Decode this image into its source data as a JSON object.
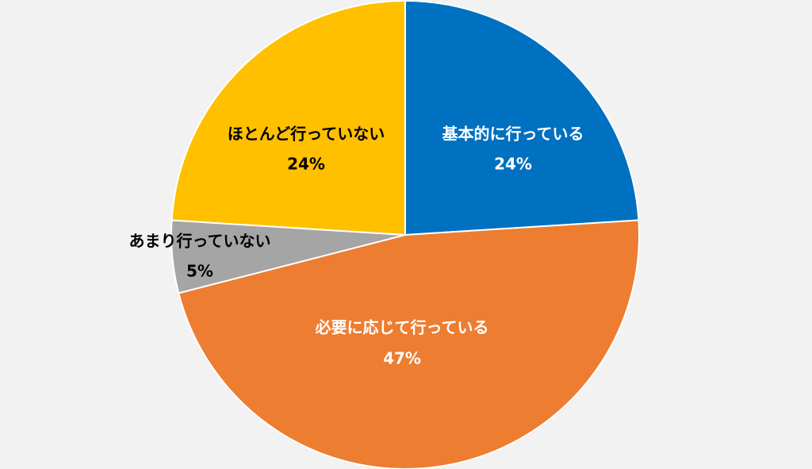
{
  "chart_data": {
    "type": "pie",
    "title": "",
    "start_angle_deg": 0,
    "direction": "clockwise",
    "legend": "none",
    "slices": [
      {
        "label": "基本的に行っている",
        "value": 24,
        "value_label": "24%",
        "color": "#0070c0",
        "label_color": "#ffffff"
      },
      {
        "label": "必要に応じて行っている",
        "value": 47,
        "value_label": "47%",
        "color": "#ed7d31",
        "label_color": "#ffffff"
      },
      {
        "label": "あまり行っていない",
        "value": 5,
        "value_label": "5%",
        "color": "#a5a5a5",
        "label_color": "#000000"
      },
      {
        "label": "ほとんど行っていない",
        "value": 24,
        "value_label": "24%",
        "color": "#ffc000",
        "label_color": "#000000"
      }
    ]
  }
}
